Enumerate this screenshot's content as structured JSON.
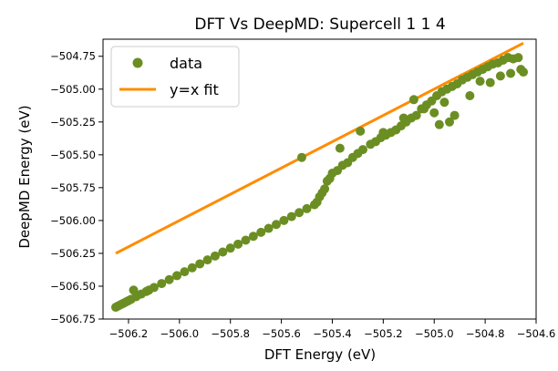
{
  "chart_data": {
    "type": "scatter",
    "title": "DFT Vs DeepMD: Supercell 1 1 4",
    "xlabel": "DFT Energy (eV)",
    "ylabel": "DeepMD Energy (eV)",
    "xlim": [
      -506.3,
      -504.6
    ],
    "ylim": [
      -506.75,
      -504.62
    ],
    "xticks": [
      -506.2,
      -506.0,
      -505.8,
      -505.6,
      -505.4,
      -505.2,
      -505.0,
      -504.8,
      -504.6
    ],
    "xtick_labels": [
      "−506.2",
      "−506.0",
      "−505.8",
      "−505.6",
      "−505.4",
      "−505.2",
      "−505.0",
      "−504.8",
      "−504.6"
    ],
    "yticks": [
      -506.75,
      -506.5,
      -506.25,
      -506.0,
      -505.75,
      -505.5,
      -505.25,
      -505.0,
      -504.75
    ],
    "ytick_labels": [
      "−506.75",
      "−506.50",
      "−506.25",
      "−506.00",
      "−505.75",
      "−505.50",
      "−505.25",
      "−505.00",
      "−504.75"
    ],
    "grid": false,
    "legend_position": "top-left",
    "series": [
      {
        "name": "data",
        "kind": "scatter",
        "color": "#6b8e23",
        "x": [
          -506.25,
          -506.24,
          -506.23,
          -506.22,
          -506.21,
          -506.2,
          -506.19,
          -506.17,
          -506.15,
          -506.13,
          -506.12,
          -506.1,
          -506.07,
          -506.04,
          -506.01,
          -505.98,
          -505.95,
          -505.92,
          -505.89,
          -505.86,
          -505.83,
          -505.8,
          -505.77,
          -505.74,
          -505.71,
          -505.68,
          -505.65,
          -505.62,
          -505.59,
          -505.56,
          -505.53,
          -505.5,
          -505.47,
          -505.46,
          -505.45,
          -505.44,
          -505.43,
          -505.42,
          -505.41,
          -505.4,
          -505.38,
          -505.36,
          -505.34,
          -505.32,
          -505.3,
          -505.28,
          -505.25,
          -505.23,
          -505.21,
          -505.19,
          -505.17,
          -505.15,
          -505.13,
          -505.11,
          -505.09,
          -505.07,
          -505.05,
          -505.03,
          -505.01,
          -504.99,
          -504.97,
          -504.95,
          -504.93,
          -504.91,
          -504.89,
          -504.87,
          -504.85,
          -504.83,
          -504.81,
          -504.79,
          -504.77,
          -504.75,
          -504.73,
          -504.71,
          -504.69,
          -504.67,
          -504.65,
          -506.18,
          -505.52,
          -505.37,
          -505.29,
          -505.12,
          -505.04,
          -504.96,
          -504.92,
          -504.86,
          -504.82,
          -504.74,
          -504.7,
          -505.08,
          -505.0,
          -504.98,
          -505.2,
          -504.94,
          -504.78,
          -504.66
        ],
        "y": [
          -506.66,
          -506.65,
          -506.64,
          -506.63,
          -506.62,
          -506.61,
          -506.6,
          -506.58,
          -506.56,
          -506.54,
          -506.53,
          -506.51,
          -506.48,
          -506.45,
          -506.42,
          -506.39,
          -506.36,
          -506.33,
          -506.3,
          -506.27,
          -506.24,
          -506.21,
          -506.18,
          -506.15,
          -506.12,
          -506.09,
          -506.06,
          -506.03,
          -506.0,
          -505.97,
          -505.94,
          -505.91,
          -505.88,
          -505.86,
          -505.82,
          -505.79,
          -505.76,
          -505.7,
          -505.68,
          -505.64,
          -505.62,
          -505.58,
          -505.56,
          -505.52,
          -505.49,
          -505.46,
          -505.42,
          -505.4,
          -505.37,
          -505.35,
          -505.33,
          -505.31,
          -505.28,
          -505.25,
          -505.22,
          -505.2,
          -505.15,
          -505.12,
          -505.09,
          -505.05,
          -505.02,
          -505.0,
          -504.98,
          -504.96,
          -504.93,
          -504.91,
          -504.89,
          -504.87,
          -504.85,
          -504.83,
          -504.81,
          -504.8,
          -504.78,
          -504.76,
          -504.77,
          -504.76,
          -504.87,
          -506.53,
          -505.52,
          -505.45,
          -505.32,
          -505.22,
          -505.15,
          -505.1,
          -505.2,
          -505.05,
          -504.94,
          -504.9,
          -504.88,
          -505.08,
          -505.18,
          -505.27,
          -505.33,
          -505.25,
          -504.95,
          -504.85
        ]
      },
      {
        "name": "y=x fit",
        "kind": "line",
        "color": "#ff8c00",
        "x": [
          -506.25,
          -504.65
        ],
        "y": [
          -506.25,
          -504.65
        ]
      }
    ]
  }
}
